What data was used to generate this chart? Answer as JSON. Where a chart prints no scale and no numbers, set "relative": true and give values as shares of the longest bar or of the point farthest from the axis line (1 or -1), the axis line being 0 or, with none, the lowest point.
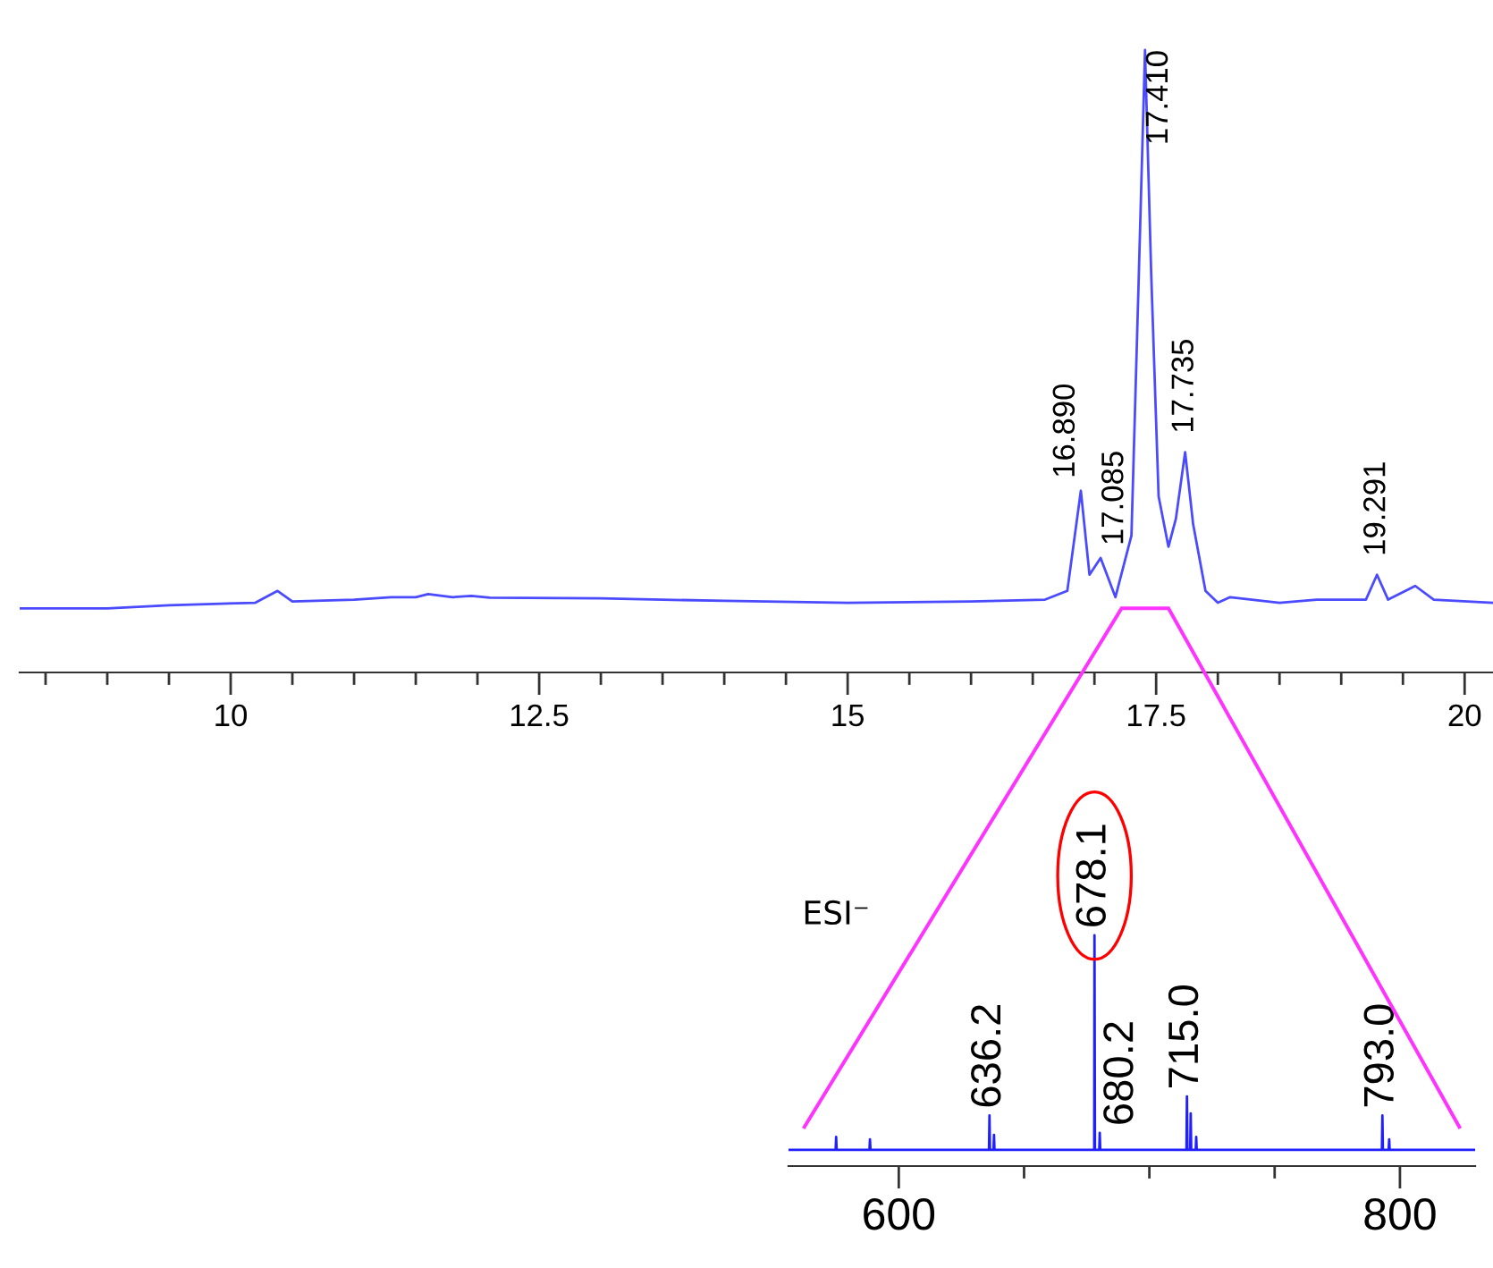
{
  "chart_data": [
    {
      "type": "line",
      "relative": true,
      "x": [
        8.29,
        8.6,
        9.0,
        9.5,
        10.2,
        10.38,
        10.5,
        11.0,
        11.3,
        11.5,
        11.6,
        11.8,
        11.95,
        12.1,
        13.0,
        14.0,
        15.0,
        16.0,
        16.6,
        16.78,
        16.89,
        16.96,
        17.05,
        17.17,
        17.3,
        17.36,
        17.41,
        17.46,
        17.52,
        17.6,
        17.66,
        17.735,
        17.8,
        17.9,
        18.0,
        18.1,
        18.5,
        18.8,
        19.2,
        19.29,
        19.38,
        19.6,
        19.75,
        20.23
      ],
      "series": [
        {
          "color": "#4a4aff",
          "values": [
            0.103,
            0.103,
            0.103,
            0.108,
            0.112,
            0.131,
            0.114,
            0.117,
            0.121,
            0.121,
            0.126,
            0.121,
            0.123,
            0.12,
            0.119,
            0.115,
            0.112,
            0.114,
            0.117,
            0.131,
            0.292,
            0.157,
            0.184,
            0.121,
            0.22,
            0.641,
            1.0,
            0.641,
            0.283,
            0.202,
            0.247,
            0.354,
            0.238,
            0.131,
            0.112,
            0.121,
            0.112,
            0.117,
            0.117,
            0.157,
            0.117,
            0.139,
            0.117,
            0.112
          ]
        }
      ],
      "xlim": [
        8.29,
        20.23
      ],
      "xticks": [
        {
          "value": 8.5,
          "label": null
        },
        {
          "value": 9,
          "label": null
        },
        {
          "value": 9.5,
          "label": null
        },
        10,
        {
          "value": 10.5,
          "label": null
        },
        {
          "value": 11,
          "label": null
        },
        {
          "value": 11.5,
          "label": null
        },
        {
          "value": 12,
          "label": null
        },
        12.5,
        {
          "value": 13,
          "label": null
        },
        {
          "value": 13.5,
          "label": null
        },
        {
          "value": 14,
          "label": null
        },
        {
          "value": 14.5,
          "label": null
        },
        15,
        {
          "value": 15.5,
          "label": null
        },
        {
          "value": 16,
          "label": null
        },
        {
          "value": 16.5,
          "label": null
        },
        {
          "value": 17,
          "label": null
        },
        17.5,
        {
          "value": 18,
          "label": null
        },
        {
          "value": 18.5,
          "label": null
        },
        {
          "value": 19,
          "label": null
        },
        {
          "value": 19.5,
          "label": null
        },
        20
      ],
      "grid": false,
      "legend": false,
      "tick_labels": "x",
      "annotations": [
        {
          "text": "16.890",
          "x": 16.89,
          "y": 0.292
        },
        {
          "text": "17.085",
          "x": 17.05,
          "y": 0.184
        },
        {
          "text": "17.410",
          "x": 17.41,
          "y": 1.0
        },
        {
          "text": "17.735",
          "x": 17.735,
          "y": 0.354
        },
        {
          "text": "19.291",
          "x": 19.29,
          "y": 0.157
        }
      ]
    },
    {
      "type": "line",
      "relative": true,
      "x": [
        556,
        574.8,
        575,
        575.2,
        588.3,
        588.5,
        588.7,
        636.0,
        636.2,
        636.4,
        637.8,
        638,
        638.2,
        678.0,
        678.1,
        678.3,
        680.0,
        680.2,
        680.4,
        714.8,
        715.0,
        715.2,
        716.3,
        716.5,
        716.7,
        718.5,
        718.7,
        718.9,
        792.8,
        793.0,
        793.2,
        795.5,
        795.7,
        795.9,
        830
      ],
      "series": [
        {
          "color": "#2020ff",
          "values": [
            0.07,
            0.07,
            0.126,
            0.07,
            0.07,
            0.116,
            0.07,
            0.07,
            0.219,
            0.07,
            0.07,
            0.135,
            0.07,
            0.07,
            1.0,
            0.07,
            0.07,
            0.144,
            0.07,
            0.07,
            0.302,
            0.07,
            0.07,
            0.228,
            0.07,
            0.07,
            0.126,
            0.07,
            0.07,
            0.219,
            0.07,
            0.07,
            0.116,
            0.07,
            0.07
          ]
        }
      ],
      "xlim": [
        556,
        830
      ],
      "xticks": [
        600,
        {
          "value": 650,
          "label": null
        },
        {
          "value": 700,
          "label": null
        },
        {
          "value": 750,
          "label": null
        },
        800
      ],
      "grid": false,
      "legend": false,
      "tick_labels": "x",
      "annotations": [
        "ESI⁻",
        {
          "text": "636.2",
          "x": 636.2,
          "y": 0.219
        },
        {
          "text": "678.1",
          "x": 678.1,
          "y": 1.0
        },
        {
          "text": "680.2",
          "x": 680.2,
          "y": 0.144
        },
        {
          "text": "715.0",
          "x": 715.0,
          "y": 0.302
        },
        {
          "text": "793.0",
          "x": 793.0,
          "y": 0.219
        }
      ]
    }
  ]
}
